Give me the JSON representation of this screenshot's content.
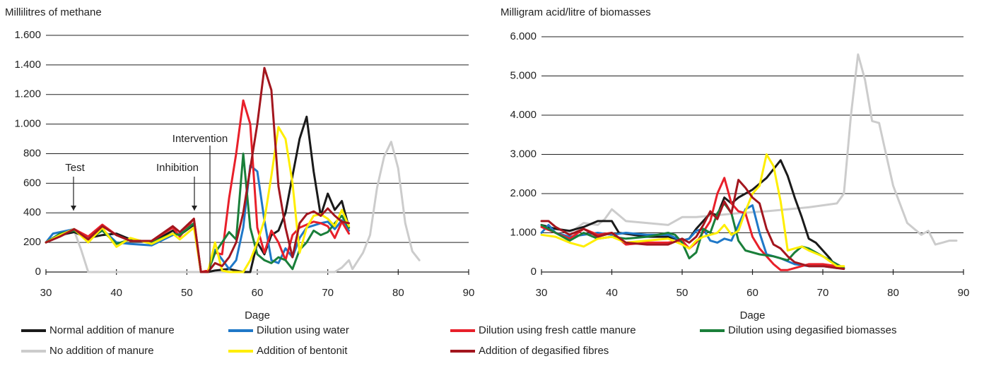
{
  "chart_data": [
    {
      "type": "line",
      "title": "Millilitres of methane",
      "x_label": "Dage",
      "xlim": [
        30,
        90
      ],
      "xticks": [
        30,
        40,
        50,
        60,
        70,
        80,
        90
      ],
      "ylim": [
        0,
        1600
      ],
      "yticks": [
        0,
        200,
        400,
        600,
        800,
        {
          "value": 1000,
          "label": "1.000"
        },
        {
          "value": 1200,
          "label": "1.200"
        },
        {
          "value": 1400,
          "label": "1.400"
        },
        {
          "value": 1600,
          "label": "1.600"
        }
      ],
      "grid": true,
      "annotations": [
        "Test",
        "Inhibition",
        "Intervention"
      ],
      "series": [
        {
          "name": "Normal addition of manure",
          "color": "#1a1a1a",
          "x": [
            30,
            32,
            34,
            36,
            38,
            40,
            42,
            45,
            48,
            49,
            51,
            52,
            53,
            54,
            56,
            58,
            59,
            60,
            61,
            62,
            63,
            64,
            65,
            66,
            67,
            68,
            69,
            70,
            71,
            72,
            73
          ],
          "values": [
            200,
            250,
            270,
            230,
            250,
            260,
            220,
            200,
            280,
            250,
            320,
            0,
            0,
            10,
            20,
            0,
            0,
            200,
            120,
            250,
            280,
            400,
            650,
            900,
            1050,
            680,
            380,
            530,
            420,
            480,
            300
          ]
        },
        {
          "name": "Dilution using water",
          "color": "#1f78c8",
          "x": [
            30,
            31,
            34,
            36,
            38,
            40,
            42,
            45,
            48,
            49,
            51,
            52,
            53,
            54,
            56,
            57,
            58,
            59,
            60,
            61,
            62,
            63,
            64,
            65,
            66,
            67,
            69,
            70,
            71,
            72,
            73
          ],
          "values": [
            200,
            260,
            290,
            230,
            290,
            200,
            190,
            180,
            250,
            260,
            330,
            0,
            0,
            150,
            20,
            80,
            300,
            720,
            680,
            350,
            80,
            60,
            160,
            100,
            230,
            300,
            330,
            340,
            290,
            350,
            280
          ]
        },
        {
          "name": "Dilution using fresh cattle manure",
          "color": "#e8202a",
          "x": [
            30,
            32,
            34,
            36,
            38,
            40,
            42,
            45,
            48,
            49,
            51,
            52,
            53,
            54,
            55,
            56,
            57,
            58,
            59,
            60,
            61,
            62,
            63,
            64,
            65,
            66,
            67,
            68,
            69,
            70,
            71,
            72,
            73
          ],
          "values": [
            200,
            250,
            290,
            240,
            320,
            250,
            210,
            210,
            300,
            240,
            360,
            0,
            10,
            130,
            120,
            500,
            800,
            1160,
            1000,
            300,
            130,
            280,
            200,
            80,
            250,
            300,
            320,
            340,
            330,
            310,
            230,
            340,
            260
          ]
        },
        {
          "name": "Dilution using degasified biomasses",
          "color": "#1a7f3a",
          "x": [
            30,
            32,
            34,
            36,
            38,
            40,
            42,
            45,
            48,
            49,
            51,
            52,
            53,
            54,
            56,
            57,
            58,
            59,
            60,
            61,
            62,
            63,
            64,
            65,
            66,
            67,
            68,
            69,
            70,
            71,
            72,
            73
          ],
          "values": [
            200,
            260,
            280,
            220,
            280,
            190,
            220,
            200,
            260,
            250,
            330,
            0,
            0,
            130,
            270,
            220,
            800,
            300,
            120,
            80,
            60,
            100,
            80,
            20,
            150,
            200,
            280,
            250,
            270,
            330,
            380,
            300
          ]
        },
        {
          "name": "No addition of manure",
          "color": "#cccccc",
          "x": [
            30,
            32,
            34,
            35,
            36,
            50,
            71,
            72,
            73,
            73.5,
            75,
            76,
            77,
            78,
            79,
            80,
            81,
            82,
            83
          ],
          "values": [
            200,
            240,
            280,
            150,
            0,
            0,
            0,
            30,
            80,
            20,
            130,
            250,
            570,
            780,
            880,
            700,
            330,
            140,
            80
          ]
        },
        {
          "name": "Addition of bentonit",
          "color": "#ffee00",
          "x": [
            30,
            32,
            34,
            36,
            38,
            40,
            42,
            45,
            48,
            49,
            51,
            52,
            53,
            54,
            55,
            56,
            58,
            59,
            60,
            61,
            62,
            63,
            64,
            65,
            66,
            67,
            68,
            69,
            70,
            71,
            72,
            73
          ],
          "values": [
            200,
            250,
            290,
            200,
            300,
            170,
            230,
            190,
            260,
            220,
            300,
            0,
            0,
            200,
            10,
            0,
            0,
            80,
            200,
            350,
            650,
            980,
            900,
            600,
            130,
            300,
            380,
            390,
            360,
            310,
            420,
            310
          ]
        },
        {
          "name": "Addition of degasified fibres",
          "color": "#a3161e",
          "x": [
            30,
            32,
            34,
            36,
            38,
            40,
            42,
            45,
            48,
            49,
            51,
            52,
            53,
            54,
            55,
            56,
            57,
            58,
            59,
            60,
            61,
            62,
            63,
            64,
            65,
            66,
            67,
            68,
            69,
            70,
            71,
            72,
            73
          ],
          "values": [
            200,
            240,
            290,
            220,
            310,
            250,
            210,
            210,
            310,
            270,
            360,
            0,
            0,
            60,
            40,
            100,
            200,
            400,
            700,
            1000,
            1380,
            1230,
            580,
            300,
            100,
            330,
            390,
            410,
            380,
            430,
            380,
            340,
            330
          ]
        }
      ]
    },
    {
      "type": "line",
      "title": "Milligram acid/litre of biomasses",
      "x_label": "Dage",
      "xlim": [
        30,
        90
      ],
      "xticks": [
        30,
        40,
        50,
        60,
        70,
        80,
        90
      ],
      "ylim": [
        0,
        6000
      ],
      "yticks": [
        0,
        {
          "value": 1000,
          "label": "1.000"
        },
        {
          "value": 2000,
          "label": "2.000"
        },
        {
          "value": 3000,
          "label": "3.000"
        },
        {
          "value": 4000,
          "label": "4.000"
        },
        {
          "value": 5000,
          "label": "5.000"
        },
        {
          "value": 6000,
          "label": "6.000"
        }
      ],
      "grid": true,
      "series": [
        {
          "x": [
            30,
            32,
            34,
            36,
            38,
            40,
            41,
            45,
            48,
            50,
            51,
            52,
            54,
            55,
            56,
            57,
            58,
            60,
            62,
            64,
            65,
            66,
            67,
            68,
            69,
            70,
            71,
            72
          ],
          "values": [
            1200,
            1100,
            1050,
            1150,
            1300,
            1300,
            1000,
            900,
            900,
            800,
            850,
            1100,
            1500,
            1450,
            1900,
            1750,
            1900,
            2100,
            2400,
            2850,
            2450,
            1900,
            1400,
            850,
            750,
            550,
            350,
            100
          ]
        },
        {
          "x": [
            30,
            31,
            32,
            34,
            36,
            38,
            40,
            42,
            45,
            48,
            50,
            51,
            52,
            53,
            54,
            55,
            56,
            57,
            58,
            59,
            60,
            61,
            62,
            64,
            66,
            68,
            70,
            72
          ],
          "values": [
            1000,
            1200,
            1000,
            900,
            950,
            1000,
            950,
            1000,
            950,
            950,
            800,
            850,
            1050,
            1100,
            800,
            750,
            850,
            800,
            1200,
            1600,
            1700,
            1000,
            450,
            350,
            200,
            150,
            150,
            100
          ]
        },
        {
          "x": [
            30,
            32,
            34,
            36,
            38,
            40,
            42,
            45,
            48,
            50,
            51,
            52,
            54,
            55,
            56,
            57,
            58,
            59,
            60,
            61,
            62,
            63,
            64,
            65,
            66,
            68,
            70,
            72,
            73
          ],
          "values": [
            1150,
            1000,
            850,
            1100,
            950,
            1000,
            700,
            750,
            750,
            800,
            600,
            750,
            1300,
            2000,
            2400,
            1750,
            1550,
            1500,
            900,
            600,
            400,
            200,
            50,
            50,
            100,
            200,
            200,
            150,
            100
          ]
        },
        {
          "x": [
            30,
            32,
            34,
            36,
            38,
            40,
            42,
            45,
            48,
            49,
            50,
            51,
            52,
            53,
            54,
            55,
            56,
            57,
            58,
            59,
            61,
            63,
            65,
            66,
            67,
            68,
            70,
            72,
            73
          ],
          "values": [
            1200,
            1000,
            800,
            1000,
            850,
            900,
            850,
            900,
            1000,
            950,
            750,
            350,
            500,
            1100,
            1000,
            1500,
            1750,
            1500,
            800,
            550,
            450,
            400,
            300,
            500,
            650,
            600,
            400,
            200,
            100
          ]
        },
        {
          "x": [
            30,
            32,
            34,
            36,
            38,
            39,
            40,
            41,
            42,
            45,
            48,
            50,
            52,
            55,
            58,
            62,
            65,
            68,
            72,
            73,
            74,
            75,
            76,
            77,
            78,
            79,
            80,
            82,
            84,
            85,
            86,
            87,
            88,
            89
          ],
          "values": [
            1200,
            1100,
            1000,
            1250,
            1200,
            1350,
            1600,
            1450,
            1300,
            1250,
            1200,
            1400,
            1400,
            1450,
            1500,
            1550,
            1600,
            1650,
            1750,
            2000,
            4000,
            5550,
            4900,
            3850,
            3800,
            3000,
            2200,
            1250,
            950,
            1050,
            700,
            750,
            800,
            800
          ]
        },
        {
          "x": [
            30,
            32,
            34,
            36,
            38,
            40,
            42,
            45,
            48,
            50,
            51,
            52,
            53,
            54,
            55,
            56,
            57,
            58,
            59,
            60,
            61,
            62,
            63,
            64,
            65,
            66,
            67,
            68,
            70,
            72,
            73
          ],
          "values": [
            950,
            900,
            750,
            650,
            850,
            900,
            750,
            800,
            850,
            700,
            600,
            800,
            900,
            950,
            1000,
            1200,
            950,
            1050,
            1550,
            2000,
            2200,
            3000,
            2700,
            1800,
            550,
            600,
            650,
            550,
            400,
            150,
            150
          ]
        },
        {
          "x": [
            30,
            31,
            32,
            34,
            36,
            38,
            40,
            42,
            45,
            48,
            50,
            51,
            52,
            53,
            54,
            55,
            56,
            57,
            58,
            59,
            60,
            61,
            62,
            63,
            64,
            65,
            66,
            68,
            70,
            72,
            73
          ],
          "values": [
            1300,
            1300,
            1150,
            950,
            1100,
            900,
            1000,
            750,
            700,
            700,
            850,
            750,
            900,
            1200,
            1550,
            1350,
            1800,
            1500,
            2350,
            2150,
            1900,
            1750,
            1100,
            700,
            600,
            400,
            250,
            150,
            150,
            100,
            80
          ]
        }
      ]
    }
  ]
}
